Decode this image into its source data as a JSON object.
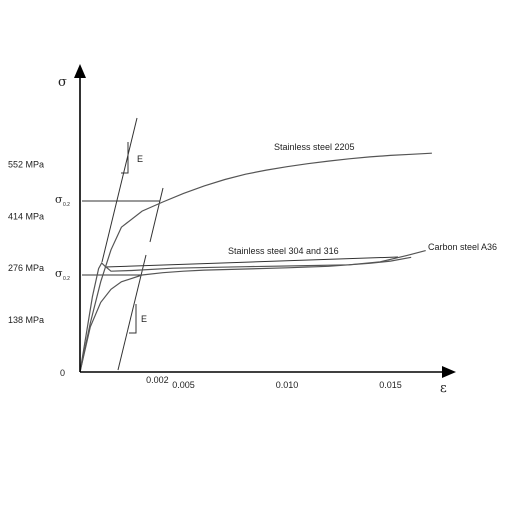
{
  "chart_data": {
    "type": "line",
    "title": "",
    "xlabel": "ε",
    "ylabel": "σ",
    "xlim": [
      0,
      0.018
    ],
    "ylim": [
      0,
      800
    ],
    "origin_label": "0",
    "x_ticks": [
      {
        "value": 0.005,
        "label": "0.005"
      },
      {
        "value": 0.01,
        "label": "0.010"
      },
      {
        "value": 0.015,
        "label": "0.015"
      }
    ],
    "x_marker": {
      "value": 0.002,
      "label": "0.002"
    },
    "y_ticks": [
      {
        "value": 138,
        "label": "138 MPa"
      },
      {
        "value": 276,
        "label": "276 MPa"
      },
      {
        "value": 414,
        "label": "414 MPa"
      },
      {
        "value": 552,
        "label": "552 MPa"
      }
    ],
    "series": [
      {
        "name": "Stainless steel 2205",
        "points": [
          [
            0,
            0
          ],
          [
            0.0005,
            130
          ],
          [
            0.001,
            240
          ],
          [
            0.0015,
            325
          ],
          [
            0.002,
            385
          ],
          [
            0.003,
            428
          ],
          [
            0.004,
            452
          ],
          [
            0.005,
            475
          ],
          [
            0.006,
            495
          ],
          [
            0.007,
            512
          ],
          [
            0.008,
            526
          ],
          [
            0.009,
            537
          ],
          [
            0.01,
            546
          ],
          [
            0.011,
            554
          ],
          [
            0.012,
            561
          ],
          [
            0.013,
            567
          ],
          [
            0.014,
            572
          ],
          [
            0.015,
            576
          ],
          [
            0.016,
            579
          ],
          [
            0.017,
            582
          ]
        ]
      },
      {
        "name": "Stainless steel 304 and 316",
        "points": [
          [
            0,
            0
          ],
          [
            0.0005,
            120
          ],
          [
            0.001,
            185
          ],
          [
            0.0015,
            220
          ],
          [
            0.002,
            240
          ],
          [
            0.003,
            258
          ],
          [
            0.004,
            264
          ],
          [
            0.005,
            268
          ],
          [
            0.006,
            271
          ],
          [
            0.008,
            274
          ],
          [
            0.01,
            277
          ],
          [
            0.012,
            281
          ],
          [
            0.014,
            289
          ],
          [
            0.015,
            295
          ],
          [
            0.016,
            305
          ]
        ]
      },
      {
        "name": "Carbon steel A36",
        "points": [
          [
            0,
            0
          ],
          [
            0.0003,
            100
          ],
          [
            0.0006,
            200
          ],
          [
            0.0009,
            275
          ],
          [
            0.00105,
            290
          ],
          [
            0.0012,
            282
          ],
          [
            0.0015,
            268
          ],
          [
            0.0025,
            270
          ],
          [
            0.0045,
            276
          ],
          [
            0.008,
            280
          ],
          [
            0.011,
            283
          ],
          [
            0.013,
            285
          ],
          [
            0.0145,
            293
          ],
          [
            0.0158,
            310
          ],
          [
            0.0167,
            323
          ]
        ]
      }
    ],
    "annotations": [
      {
        "text": "σ0.2",
        "symbol": "σ",
        "subscript": "0.2",
        "value": 454
      },
      {
        "text": "σ0.2",
        "symbol": "σ",
        "subscript": "0.2",
        "value": 270
      },
      {
        "text": "E"
      },
      {
        "text": "E"
      }
    ]
  }
}
